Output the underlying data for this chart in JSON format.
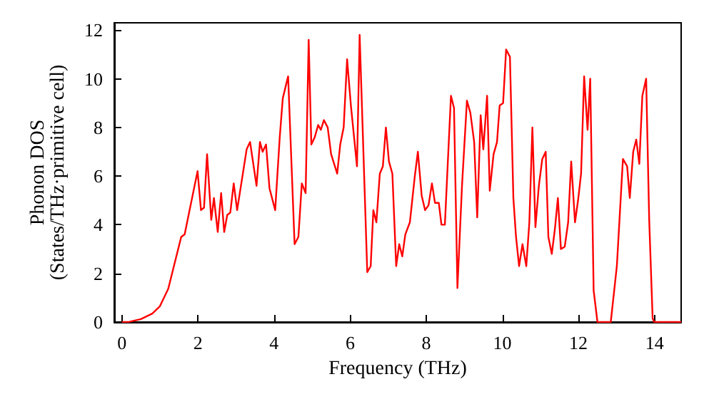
{
  "chart_data": {
    "type": "line",
    "xlabel": "Frequency (THz)",
    "ylabel": "Phonon DOS\n(States/THz·primitive cell)",
    "xlim": [
      -0.2,
      14.7
    ],
    "ylim": [
      0,
      12.3
    ],
    "xticks": [
      0,
      2,
      4,
      6,
      8,
      10,
      12,
      14
    ],
    "yticks": [
      0,
      2,
      4,
      6,
      8,
      10,
      12
    ],
    "grid": false,
    "marker": "none",
    "line_style": "solid",
    "series": [
      {
        "color": "#ff0000",
        "x": [
          0,
          0.2,
          0.5,
          0.8,
          1.0,
          1.22,
          1.56,
          1.65,
          1.99,
          2.08,
          2.16,
          2.24,
          2.35,
          2.42,
          2.52,
          2.61,
          2.69,
          2.77,
          2.85,
          2.94,
          3.03,
          3.28,
          3.37,
          3.54,
          3.63,
          3.7,
          3.79,
          3.88,
          4.03,
          4.15,
          4.23,
          4.37,
          4.54,
          4.64,
          4.73,
          4.83,
          4.91,
          4.98,
          5.07,
          5.16,
          5.23,
          5.31,
          5.41,
          5.5,
          5.66,
          5.74,
          5.83,
          5.92,
          6.02,
          6.18,
          6.25,
          6.45,
          6.54,
          6.61,
          6.69,
          6.78,
          6.86,
          6.94,
          7.02,
          7.11,
          7.21,
          7.29,
          7.37,
          7.45,
          7.57,
          7.7,
          7.78,
          7.88,
          7.97,
          8.06,
          8.15,
          8.23,
          8.33,
          8.4,
          8.49,
          8.65,
          8.73,
          8.82,
          8.94,
          9.07,
          9.16,
          9.26,
          9.34,
          9.43,
          9.5,
          9.6,
          9.67,
          9.77,
          9.86,
          9.93,
          10.02,
          10.1,
          10.2,
          10.29,
          10.36,
          10.44,
          10.53,
          10.63,
          10.71,
          10.79,
          10.87,
          10.96,
          11.05,
          11.14,
          11.21,
          11.3,
          11.38,
          11.46,
          11.54,
          11.64,
          11.73,
          11.81,
          11.91,
          11.99,
          12.07,
          12.15,
          12.24,
          12.31,
          12.4,
          12.5,
          12.85,
          13.01,
          13.09,
          13.17,
          13.28,
          13.35,
          13.44,
          13.52,
          13.6,
          13.68,
          13.78,
          13.86,
          13.95,
          13.99,
          14.7
        ],
        "values": [
          0,
          0.01,
          0.12,
          0.35,
          0.65,
          1.37,
          3.5,
          3.6,
          6.2,
          4.6,
          4.7,
          6.9,
          4.2,
          5.1,
          3.7,
          5.3,
          3.7,
          4.4,
          4.5,
          5.7,
          4.6,
          7.1,
          7.4,
          5.6,
          7.4,
          7.0,
          7.3,
          5.5,
          4.6,
          7.6,
          9.2,
          10.1,
          3.2,
          3.5,
          5.7,
          5.3,
          11.6,
          7.3,
          7.6,
          8.1,
          7.9,
          8.3,
          8.0,
          6.9,
          6.1,
          7.3,
          8.0,
          10.8,
          8.9,
          6.4,
          11.8,
          2.05,
          2.3,
          4.6,
          4.1,
          6.1,
          6.4,
          8.0,
          6.6,
          6.1,
          2.3,
          3.2,
          2.7,
          3.6,
          4.1,
          6.0,
          7.0,
          5.2,
          4.6,
          4.8,
          5.7,
          4.9,
          4.9,
          4.0,
          4.0,
          9.3,
          8.8,
          1.4,
          5.6,
          9.1,
          8.6,
          7.4,
          4.3,
          8.5,
          7.1,
          9.3,
          5.4,
          6.9,
          7.4,
          8.9,
          9.0,
          11.2,
          10.9,
          5.1,
          3.5,
          2.3,
          3.2,
          2.3,
          4.1,
          8.0,
          3.9,
          5.6,
          6.7,
          7.0,
          3.5,
          2.8,
          3.8,
          5.1,
          3.0,
          3.1,
          4.1,
          6.6,
          4.1,
          5.0,
          6.1,
          10.1,
          7.9,
          10.0,
          1.3,
          0,
          0,
          2.3,
          4.5,
          6.7,
          6.4,
          5.1,
          7.0,
          7.5,
          6.5,
          9.3,
          10.0,
          4.2,
          0.16,
          0,
          0
        ]
      }
    ]
  }
}
